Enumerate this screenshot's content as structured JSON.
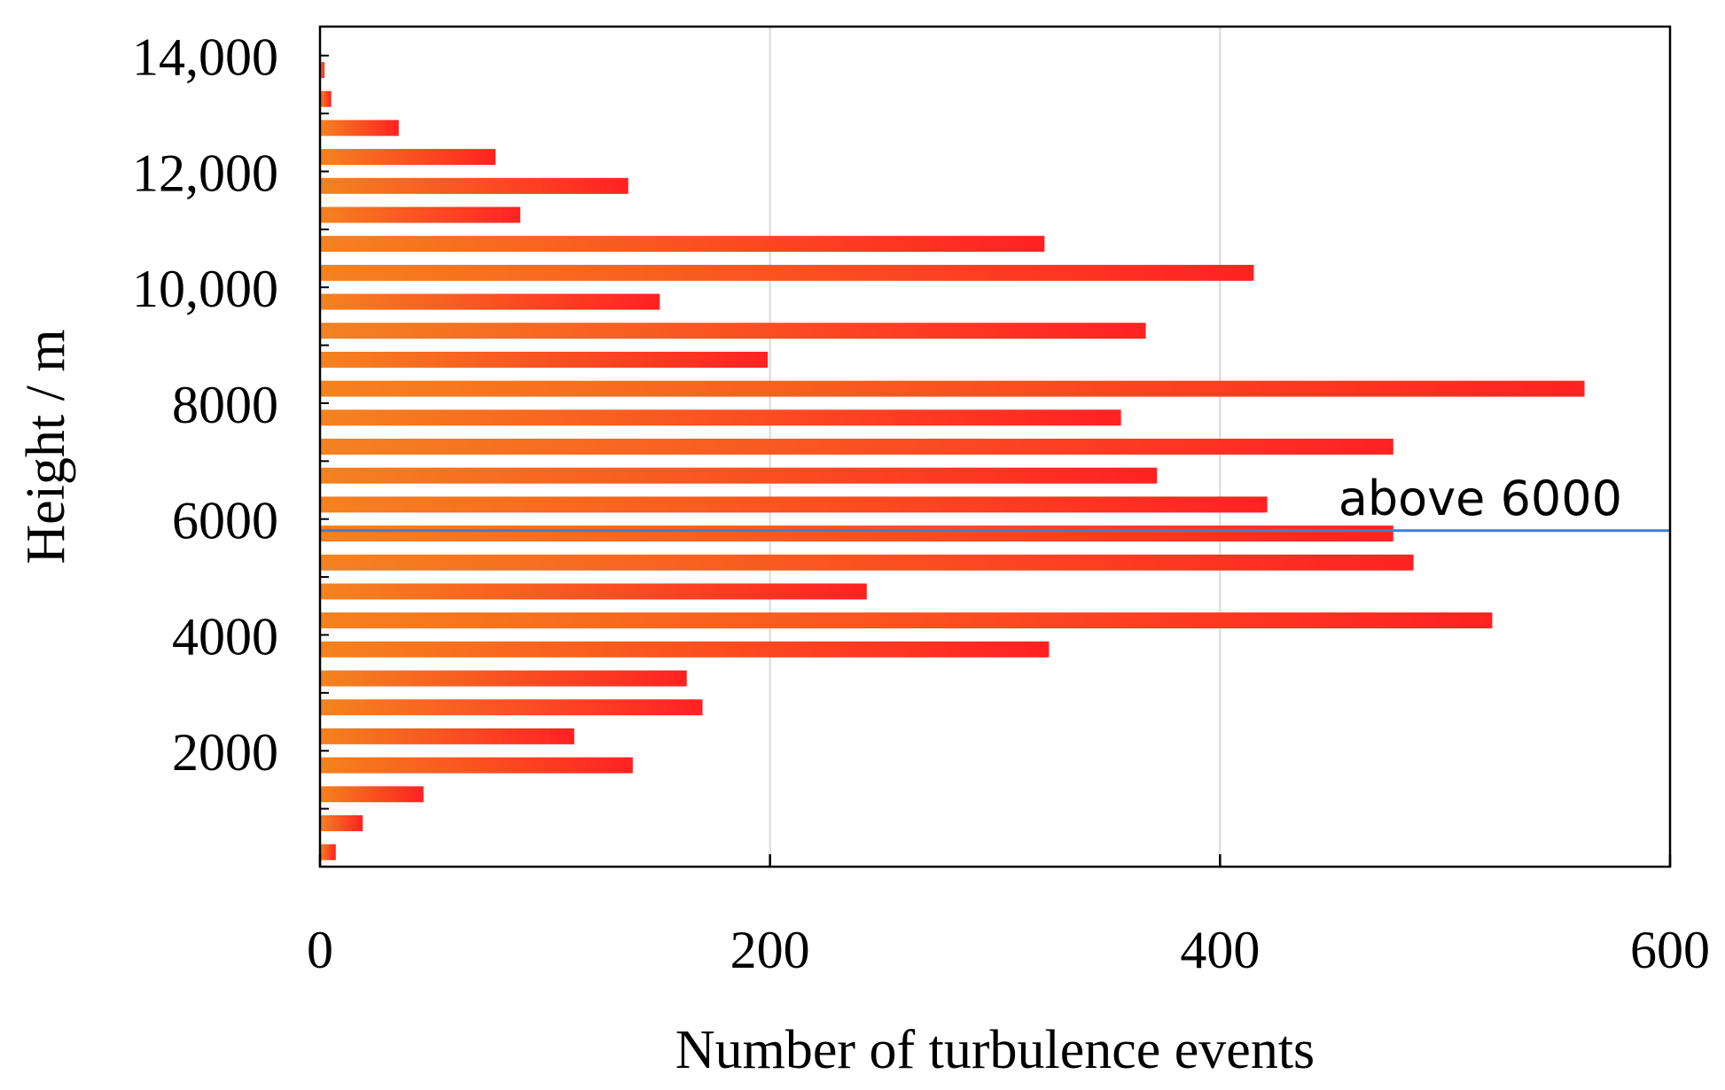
{
  "chart_data": {
    "type": "bar",
    "orientation": "horizontal",
    "xlabel": "Number of turbulence events",
    "ylabel": "Height / m",
    "xlim": [
      0,
      600
    ],
    "ylim": [
      0,
      14500
    ],
    "x_ticks": [
      0,
      200,
      400,
      600
    ],
    "x_tick_labels": [
      "0",
      "200",
      "400",
      "600"
    ],
    "y_ticks": [
      2000,
      4000,
      6000,
      8000,
      10000,
      12000,
      14000
    ],
    "y_tick_labels": [
      "2000",
      "4000",
      "6000",
      "8000",
      "10,000",
      "12,000",
      "14,000"
    ],
    "grid": "vertical",
    "bar_color_start": "#f5821f",
    "bar_color_end": "#ff2222",
    "heights": [
      250,
      750,
      1250,
      1750,
      2250,
      2750,
      3250,
      3750,
      4250,
      4750,
      5250,
      5750,
      6250,
      6750,
      7250,
      7750,
      8250,
      8750,
      9250,
      9750,
      10250,
      10750,
      11250,
      11750,
      12250,
      12750,
      13250,
      13750
    ],
    "values": [
      7,
      19,
      46,
      139,
      113,
      170,
      163,
      324,
      521,
      243,
      486,
      477,
      421,
      372,
      477,
      356,
      562,
      199,
      367,
      151,
      415,
      322,
      89,
      137,
      78,
      35,
      5,
      2
    ],
    "annotation": {
      "text": "above 6000",
      "y": 5800,
      "line_color": "#3d7fd6"
    }
  }
}
